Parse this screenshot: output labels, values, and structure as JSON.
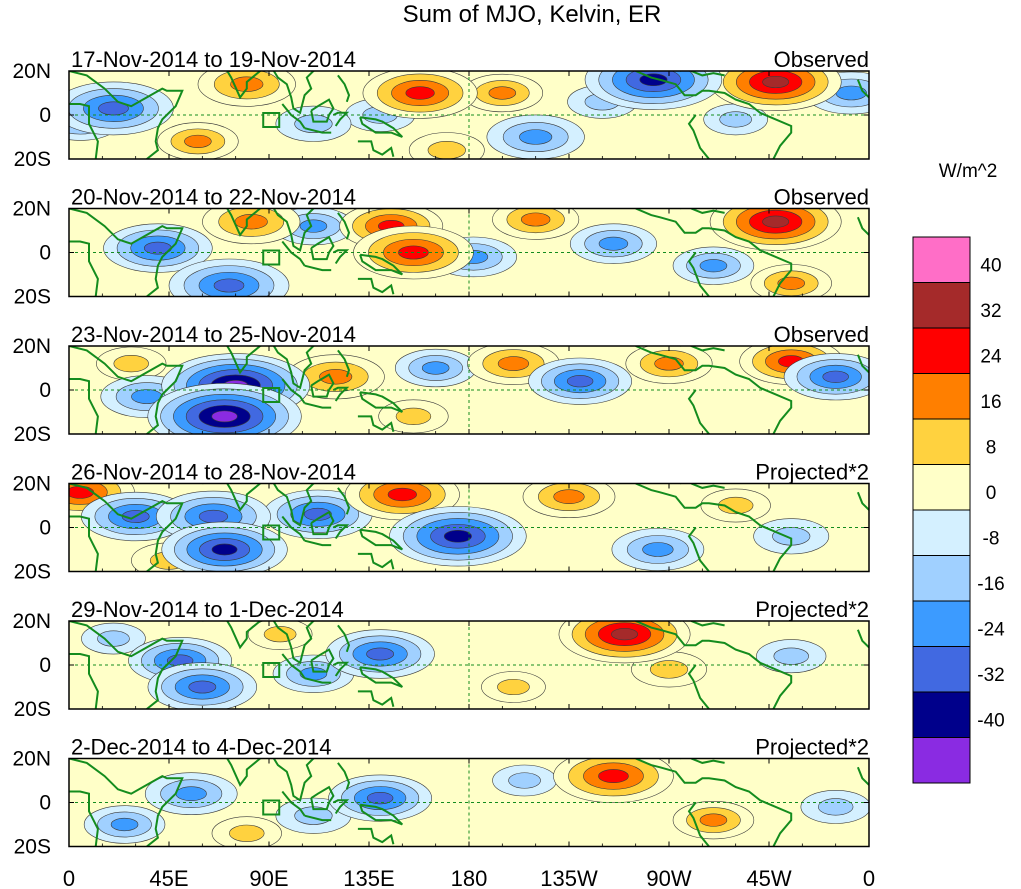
{
  "chart_data": {
    "type": "heatmap",
    "title": "Sum of MJO, Kelvin, ER",
    "units_label": "W/m^2",
    "x_tick_labels": [
      "0",
      "45E",
      "90E",
      "135E",
      "180",
      "135W",
      "90W",
      "45W",
      "0"
    ],
    "x_tick_longitudes": [
      0,
      45,
      90,
      135,
      180,
      225,
      270,
      315,
      360
    ],
    "y_tick_labels": [
      "20N",
      "0",
      "20S"
    ],
    "y_tick_latitudes": [
      20,
      0,
      -20
    ],
    "lon_range": [
      0,
      360
    ],
    "lat_range": [
      -20,
      20
    ],
    "colorbar": {
      "levels": [
        "40",
        "32",
        "24",
        "16",
        "8",
        "0",
        "-8",
        "-16",
        "-24",
        "-32",
        "-40"
      ],
      "colors": [
        "#ff6ec7",
        "#a52a2a",
        "#ff0000",
        "#ff7f00",
        "#ffd23f",
        "#ffffc8",
        "#d4f0ff",
        "#a0d0ff",
        "#3c9bff",
        "#4169e1",
        "#00008b",
        "#8a2be2"
      ]
    },
    "panels": [
      {
        "period": "17-Nov-2014 to 19-Nov-2014",
        "status": "Observed",
        "anomalies": [
          {
            "lon": 20,
            "lat": 3,
            "value": -30
          },
          {
            "lon": 5,
            "lat": -3,
            "value": -16
          },
          {
            "lon": 80,
            "lat": 14,
            "value": 22
          },
          {
            "lon": 58,
            "lat": -12,
            "value": 16
          },
          {
            "lon": 110,
            "lat": -4,
            "value": -14
          },
          {
            "lon": 158,
            "lat": 10,
            "value": 28
          },
          {
            "lon": 140,
            "lat": 0,
            "value": -12
          },
          {
            "lon": 195,
            "lat": 10,
            "value": 16
          },
          {
            "lon": 210,
            "lat": -10,
            "value": -22
          },
          {
            "lon": 240,
            "lat": 6,
            "value": -12
          },
          {
            "lon": 263,
            "lat": 16,
            "value": -36
          },
          {
            "lon": 318,
            "lat": 15,
            "value": 34
          },
          {
            "lon": 300,
            "lat": -2,
            "value": -10
          },
          {
            "lon": 352,
            "lat": 10,
            "value": -20
          },
          {
            "lon": 170,
            "lat": -16,
            "value": 14
          }
        ]
      },
      {
        "period": "20-Nov-2014 to 22-Nov-2014",
        "status": "Observed",
        "anomalies": [
          {
            "lon": 40,
            "lat": 2,
            "value": -26
          },
          {
            "lon": 72,
            "lat": -15,
            "value": -30
          },
          {
            "lon": 82,
            "lat": 14,
            "value": 22
          },
          {
            "lon": 145,
            "lat": 12,
            "value": 24
          },
          {
            "lon": 155,
            "lat": 0,
            "value": 30
          },
          {
            "lon": 182,
            "lat": -2,
            "value": -18
          },
          {
            "lon": 210,
            "lat": 15,
            "value": 18
          },
          {
            "lon": 245,
            "lat": 4,
            "value": -18
          },
          {
            "lon": 290,
            "lat": -6,
            "value": -16
          },
          {
            "lon": 318,
            "lat": 14,
            "value": 34
          },
          {
            "lon": 325,
            "lat": -14,
            "value": 16
          },
          {
            "lon": 110,
            "lat": 12,
            "value": -16
          }
        ]
      },
      {
        "period": "23-Nov-2014 to 25-Nov-2014",
        "status": "Observed",
        "anomalies": [
          {
            "lon": 75,
            "lat": 2,
            "value": -40
          },
          {
            "lon": 70,
            "lat": -12,
            "value": -42
          },
          {
            "lon": 35,
            "lat": -3,
            "value": -20
          },
          {
            "lon": 120,
            "lat": 6,
            "value": 22
          },
          {
            "lon": 165,
            "lat": 10,
            "value": -16
          },
          {
            "lon": 200,
            "lat": 12,
            "value": 20
          },
          {
            "lon": 230,
            "lat": 4,
            "value": -24
          },
          {
            "lon": 270,
            "lat": 12,
            "value": 18
          },
          {
            "lon": 325,
            "lat": 13,
            "value": 24
          },
          {
            "lon": 345,
            "lat": 6,
            "value": -24
          },
          {
            "lon": 155,
            "lat": -12,
            "value": 12
          },
          {
            "lon": 28,
            "lat": 12,
            "value": 12
          }
        ]
      },
      {
        "period": "26-Nov-2014 to 28-Nov-2014",
        "status": "Projected*2",
        "anomalies": [
          {
            "lon": 5,
            "lat": 16,
            "value": 26
          },
          {
            "lon": 30,
            "lat": 5,
            "value": -26
          },
          {
            "lon": 65,
            "lat": 5,
            "value": -28
          },
          {
            "lon": 70,
            "lat": -10,
            "value": -32
          },
          {
            "lon": 112,
            "lat": 6,
            "value": -26
          },
          {
            "lon": 150,
            "lat": 15,
            "value": 28
          },
          {
            "lon": 175,
            "lat": -4,
            "value": -36
          },
          {
            "lon": 225,
            "lat": 14,
            "value": 20
          },
          {
            "lon": 265,
            "lat": -10,
            "value": -20
          },
          {
            "lon": 300,
            "lat": 10,
            "value": 12
          },
          {
            "lon": 325,
            "lat": -4,
            "value": -14
          },
          {
            "lon": 45,
            "lat": -15,
            "value": 14
          }
        ]
      },
      {
        "period": "29-Nov-2014 to 1-Dec-2014",
        "status": "Projected*2",
        "anomalies": [
          {
            "lon": 50,
            "lat": 2,
            "value": -24
          },
          {
            "lon": 60,
            "lat": -10,
            "value": -26
          },
          {
            "lon": 140,
            "lat": 5,
            "value": -26
          },
          {
            "lon": 110,
            "lat": -4,
            "value": -16
          },
          {
            "lon": 250,
            "lat": 14,
            "value": 34
          },
          {
            "lon": 270,
            "lat": -2,
            "value": 14
          },
          {
            "lon": 325,
            "lat": 4,
            "value": -12
          },
          {
            "lon": 95,
            "lat": 14,
            "value": 10
          },
          {
            "lon": 200,
            "lat": -10,
            "value": 10
          },
          {
            "lon": 20,
            "lat": 12,
            "value": -10
          }
        ]
      },
      {
        "period": "2-Dec-2014 to 4-Dec-2014",
        "status": "Projected*2",
        "anomalies": [
          {
            "lon": 55,
            "lat": 4,
            "value": -20
          },
          {
            "lon": 140,
            "lat": 2,
            "value": -24
          },
          {
            "lon": 110,
            "lat": -6,
            "value": -14
          },
          {
            "lon": 245,
            "lat": 12,
            "value": 30
          },
          {
            "lon": 290,
            "lat": -8,
            "value": 16
          },
          {
            "lon": 25,
            "lat": -10,
            "value": -16
          },
          {
            "lon": 80,
            "lat": -14,
            "value": 12
          },
          {
            "lon": 205,
            "lat": 10,
            "value": -10
          },
          {
            "lon": 345,
            "lat": -2,
            "value": -12
          }
        ]
      }
    ]
  }
}
